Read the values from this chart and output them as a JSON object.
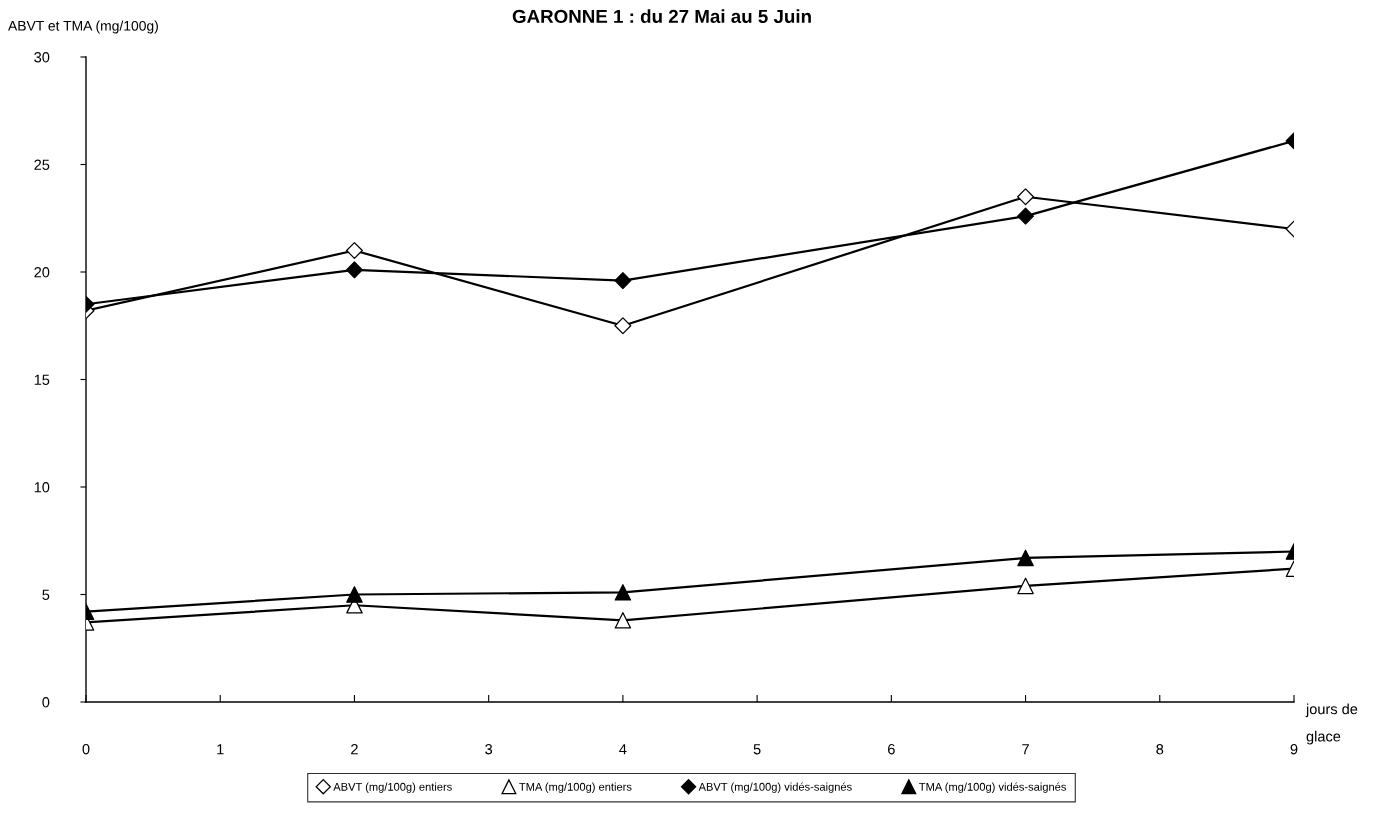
{
  "chart_data": {
    "type": "line",
    "title": "GARONNE 1 : du 27 Mai au 5 Juin",
    "ylabel": "ABVT et TMA (mg/100g)",
    "xlabel": "jours de glace",
    "x": [
      0,
      2,
      4,
      7,
      9
    ],
    "xlim": [
      0,
      9
    ],
    "xticks": [
      0,
      1,
      2,
      3,
      4,
      5,
      6,
      7,
      8,
      9
    ],
    "ylim": [
      0,
      30
    ],
    "yticks": [
      0,
      5,
      10,
      15,
      20,
      25,
      30
    ],
    "grid": false,
    "legend": "bottom",
    "line_style": "solid",
    "series": [
      {
        "name": "ABVT (mg/100g) entiers",
        "color": "#000000",
        "colors": [
          "#ffffff",
          "#ffffff",
          "#ffffff",
          "#ffffff",
          "#ffffff"
        ],
        "marker": "diamond",
        "values": [
          18.2,
          21.0,
          17.5,
          23.5,
          22.0
        ]
      },
      {
        "name": "TMA (mg/100g) entiers",
        "color": "#000000",
        "colors": [
          "#ffffff",
          "#ffffff",
          "#ffffff",
          "#ffffff",
          "#ffffff"
        ],
        "marker": "triangle",
        "values": [
          3.7,
          4.5,
          3.8,
          5.4,
          6.2
        ]
      },
      {
        "name": "ABVT (mg/100g) vidés-saignés",
        "color": "#000000",
        "marker": "diamond",
        "values": [
          18.5,
          20.1,
          19.6,
          22.6,
          26.1
        ]
      },
      {
        "name": "TMA (mg/100g) vidés-saignés",
        "color": "#000000",
        "marker": "triangle",
        "values": [
          4.2,
          5.0,
          5.1,
          6.7,
          7.0
        ]
      }
    ]
  }
}
